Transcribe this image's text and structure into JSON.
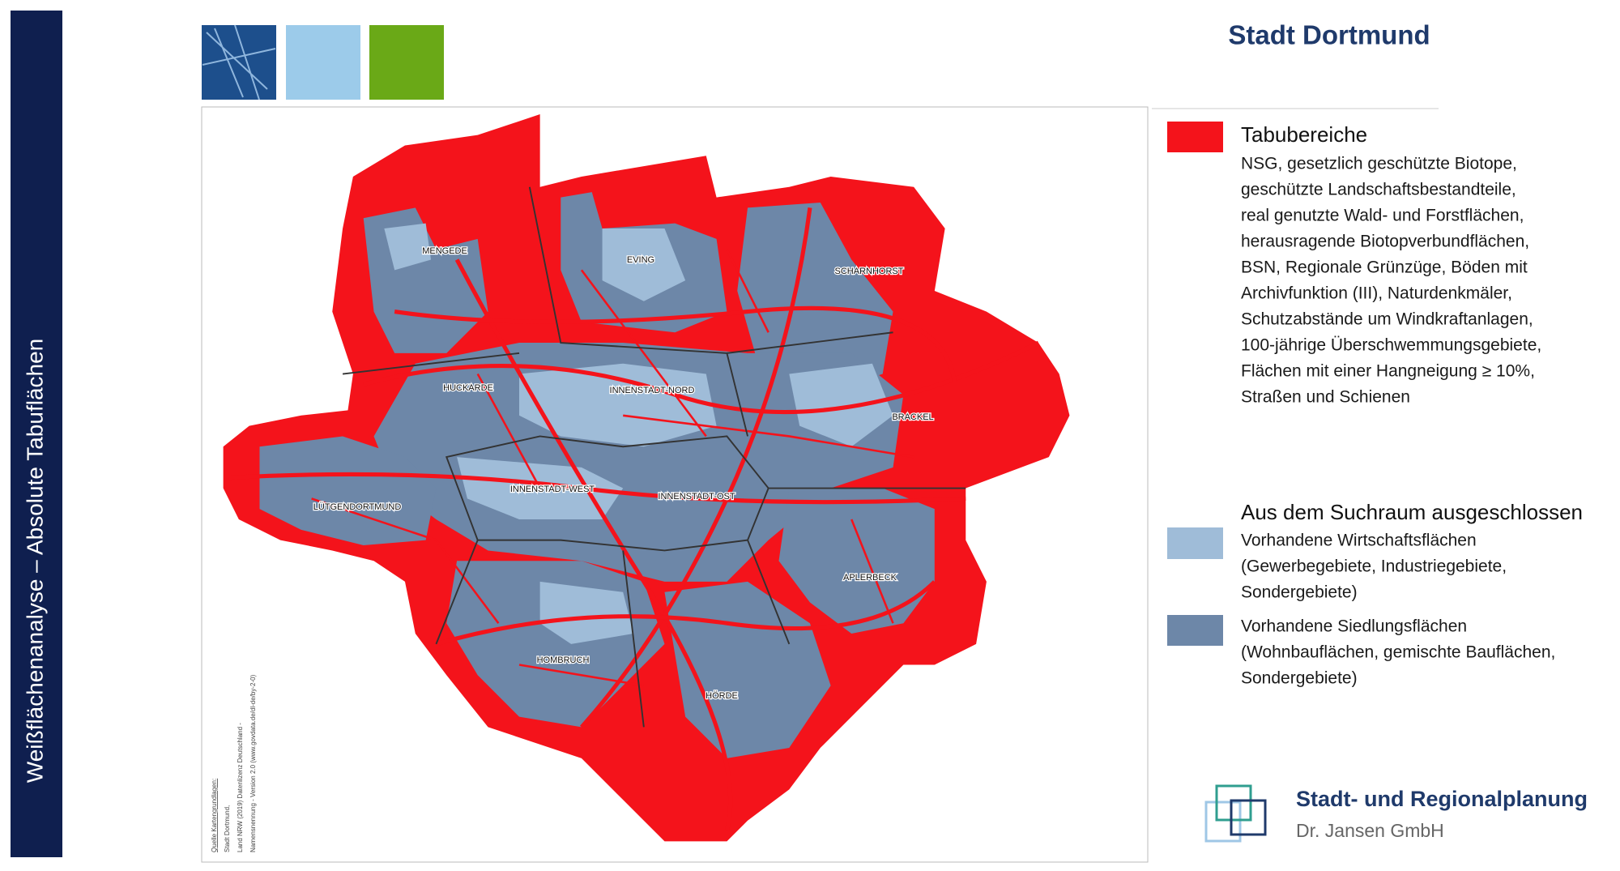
{
  "sidebar": {
    "title": "Weißflächenanalyse – Absolute Tabuflächen"
  },
  "header": {
    "title": "Stadt Dortmund"
  },
  "legend": {
    "tabu": {
      "title": "Tabubereiche",
      "lines": [
        "NSG, gesetzlich geschützte Biotope,",
        "geschützte Landschaftsbestandteile,",
        "real genutzte Wald- und Forstflächen,",
        "herausragende Biotopverbundflächen,",
        "BSN, Regionale Grünzüge, Böden mit",
        "Archivfunktion (III), Naturdenkmäler,",
        "Schutzabstände um Windkraftanlagen,",
        "100-jährige Überschwemmungsgebiete,",
        "Flächen mit einer Hangneigung ≥ 10%,",
        "Straßen und Schienen"
      ]
    },
    "excluded": {
      "title": "Aus dem Suchraum ausgeschlossen",
      "items": [
        {
          "lines": [
            "Vorhandene Wirtschaftsflächen",
            "(Gewerbegebiete, Industriegebiete,",
            "Sondergebiete)"
          ]
        },
        {
          "lines": [
            "Vorhandene Siedlungsflächen",
            "(Wohnbauflächen, gemischte Bauflächen,",
            "Sondergebiete)"
          ]
        }
      ]
    }
  },
  "map": {
    "districts": [
      "MENGEDE",
      "EVING",
      "SCHARNHORST",
      "INNENSTADT-NORD",
      "HUCKARDE",
      "BRACKEL",
      "INNENSTADT-WEST",
      "INNENSTADT-OST",
      "LÜTGENDORTMUND",
      "APLERBECK",
      "HOMBRUCH",
      "HÖRDE"
    ],
    "source": [
      "Quelle Kartengrundlagen:",
      "Stadt Dortmund,",
      "Land NRW (2019) Datenlizenz Deutschland -",
      "Namensnennung - Version 2.0 (www.govdata.de/dl-de/by-2-0)"
    ]
  },
  "logo": {
    "name": "Stadt- und Regionalplanung",
    "company": "Dr. Jansen GmbH"
  }
}
